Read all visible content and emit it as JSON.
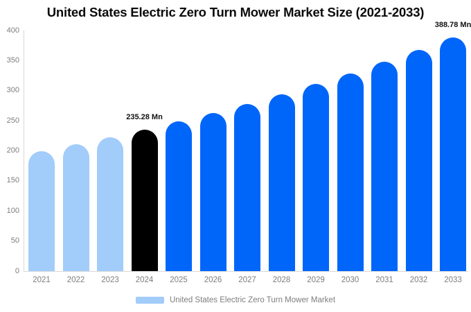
{
  "title": "United States Electric Zero Turn Mower Market Size (2021-2033)",
  "legend": {
    "label": "United States Electric Zero Turn Mower Market",
    "swatch_color": "#a2ccfa"
  },
  "colors": {
    "bar_past": "#a2ccfa",
    "bar_highlight": "#000000",
    "bar_forecast": "#0066fa",
    "axis_line": "#d9d9d9",
    "tick_text": "#7d7d7d",
    "annotation_text": "#111111",
    "title_text": "#0b0b0b"
  },
  "chart_data": {
    "type": "bar",
    "title": "United States Electric Zero Turn Mower Market Size (2021-2033)",
    "series_name": "United States Electric Zero Turn Mower Market",
    "unit": "Mn",
    "categories": [
      "2021",
      "2022",
      "2023",
      "2024",
      "2025",
      "2026",
      "2027",
      "2028",
      "2029",
      "2030",
      "2031",
      "2032",
      "2033"
    ],
    "values": [
      199.0,
      210.4,
      222.5,
      235.28,
      248.8,
      263.1,
      278.2,
      294.1,
      311.0,
      328.9,
      347.7,
      367.7,
      388.78
    ],
    "bar_color_keys": [
      "past",
      "past",
      "past",
      "highlight",
      "forecast",
      "forecast",
      "forecast",
      "forecast",
      "forecast",
      "forecast",
      "forecast",
      "forecast",
      "forecast"
    ],
    "annotations": [
      {
        "category": "2024",
        "text": "235.28 Mn"
      },
      {
        "category": "2033",
        "text": "388.78 Mn"
      }
    ],
    "xlabel": "",
    "ylabel": "",
    "ylim": [
      0,
      400
    ],
    "yticks": [
      0,
      50,
      100,
      150,
      200,
      250,
      300,
      350,
      400
    ],
    "grid": false,
    "legend_position": "bottom"
  }
}
